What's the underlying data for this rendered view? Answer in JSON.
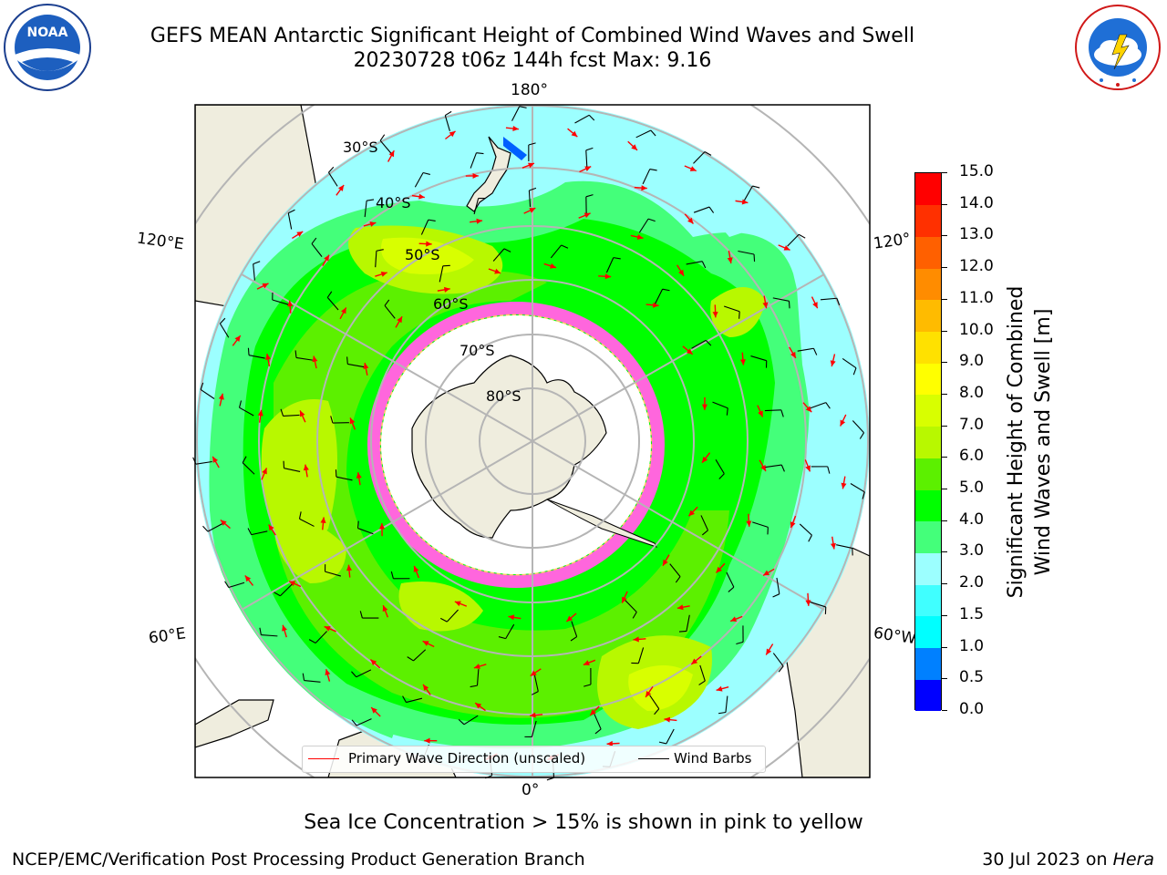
{
  "header": {
    "title_line1": "GEFS MEAN Antarctic Significant Height of Combined Wind Waves and Swell",
    "title_line2": "20230728 t06z 144h fcst   Max: 9.16"
  },
  "logos": {
    "noaa_text": "NOAA",
    "noaa_ring_text": "NATIONAL OCEANIC AND ATMOSPHERIC ADMINISTRATION · U.S. DEPARTMENT OF COMMERCE",
    "nws_ring_text": "NATIONAL WEATHER SERVICE"
  },
  "map": {
    "projection": "south-polar stereographic",
    "longitude_labels": {
      "top": "180°",
      "bottom": "0°",
      "upper_left": "120°E",
      "upper_right": "120°",
      "lower_left": "60°E",
      "lower_right": "60°W"
    },
    "latitude_labels": [
      "30°S",
      "40°S",
      "50°S",
      "60°S",
      "70°S",
      "80°S"
    ],
    "max_value": 9.16
  },
  "legend": {
    "primary_wave_label": "Primary Wave Direction (unscaled)",
    "wind_barbs_label": "Wind Barbs",
    "primary_wave_color": "#ff0000",
    "wind_barbs_color": "#000000"
  },
  "colorbar": {
    "title_line1": "Significant Height of Combined",
    "title_line2": "Wind Waves and Swell [m]",
    "tick_labels": [
      "0.0",
      "0.5",
      "1.0",
      "1.5",
      "2.0",
      "3.0",
      "4.0",
      "5.0",
      "6.0",
      "7.0",
      "8.0",
      "9.0",
      "10.0",
      "11.0",
      "12.0",
      "13.0",
      "14.0",
      "15.0"
    ],
    "colors": [
      "#0000ff",
      "#0080ff",
      "#00ffff",
      "#40ffff",
      "#9cffff",
      "#44ff7a",
      "#00ff00",
      "#5cf000",
      "#b8f800",
      "#d8ff00",
      "#ffff00",
      "#ffe100",
      "#ffbb00",
      "#ff8c00",
      "#ff6000",
      "#ff3000",
      "#ff0000"
    ]
  },
  "notes": {
    "ice_note": "Sea Ice Concentration > 15% is shown in pink to yellow"
  },
  "footer": {
    "left": "NCEP/EMC/Verification Post Processing Product Generation Branch",
    "right_prefix": "30 Jul 2023 on ",
    "right_machine": "Hera"
  }
}
